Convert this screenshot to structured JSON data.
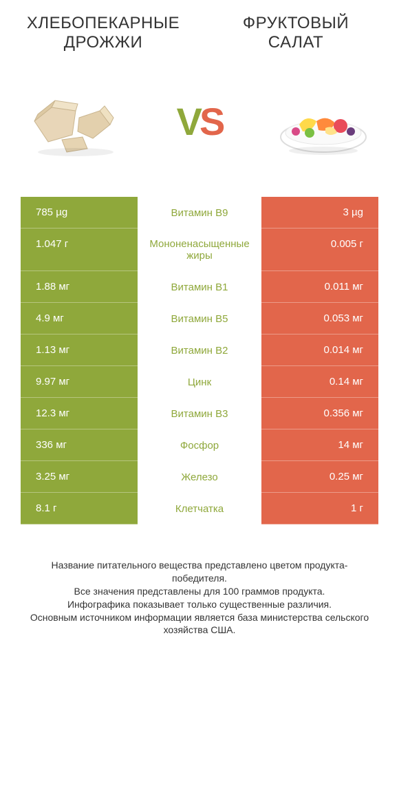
{
  "colors": {
    "green": "#8fa83b",
    "orange": "#e2664b",
    "white": "#ffffff"
  },
  "header": {
    "left_title": "ХЛЕБОПЕКАРНЫЕ ДРОЖЖИ",
    "right_title": "ФРУКТОВЫЙ САЛАТ"
  },
  "vs": {
    "v": "V",
    "s": "S"
  },
  "rows": [
    {
      "left": "785 µg",
      "mid": "Витамин B9",
      "right": "3 µg",
      "winner": "left"
    },
    {
      "left": "1.047 г",
      "mid": "Мононенасыщенные жиры",
      "right": "0.005 г",
      "winner": "left"
    },
    {
      "left": "1.88 мг",
      "mid": "Витамин B1",
      "right": "0.011 мг",
      "winner": "left"
    },
    {
      "left": "4.9 мг",
      "mid": "Витамин B5",
      "right": "0.053 мг",
      "winner": "left"
    },
    {
      "left": "1.13 мг",
      "mid": "Витамин B2",
      "right": "0.014 мг",
      "winner": "left"
    },
    {
      "left": "9.97 мг",
      "mid": "Цинк",
      "right": "0.14 мг",
      "winner": "left"
    },
    {
      "left": "12.3 мг",
      "mid": "Витамин B3",
      "right": "0.356 мг",
      "winner": "left"
    },
    {
      "left": "336 мг",
      "mid": "Фосфор",
      "right": "14 мг",
      "winner": "left"
    },
    {
      "left": "3.25 мг",
      "mid": "Железо",
      "right": "0.25 мг",
      "winner": "left"
    },
    {
      "left": "8.1 г",
      "mid": "Клетчатка",
      "right": "1 г",
      "winner": "left"
    }
  ],
  "footer": {
    "line1": "Название питательного вещества представлено цветом продукта-победителя.",
    "line2": "Все значения представлены для 100 граммов продукта.",
    "line3": "Инфографика показывает только существенные различия.",
    "line4": "Основным источником информации является база министерства сельского хозяйства США."
  }
}
